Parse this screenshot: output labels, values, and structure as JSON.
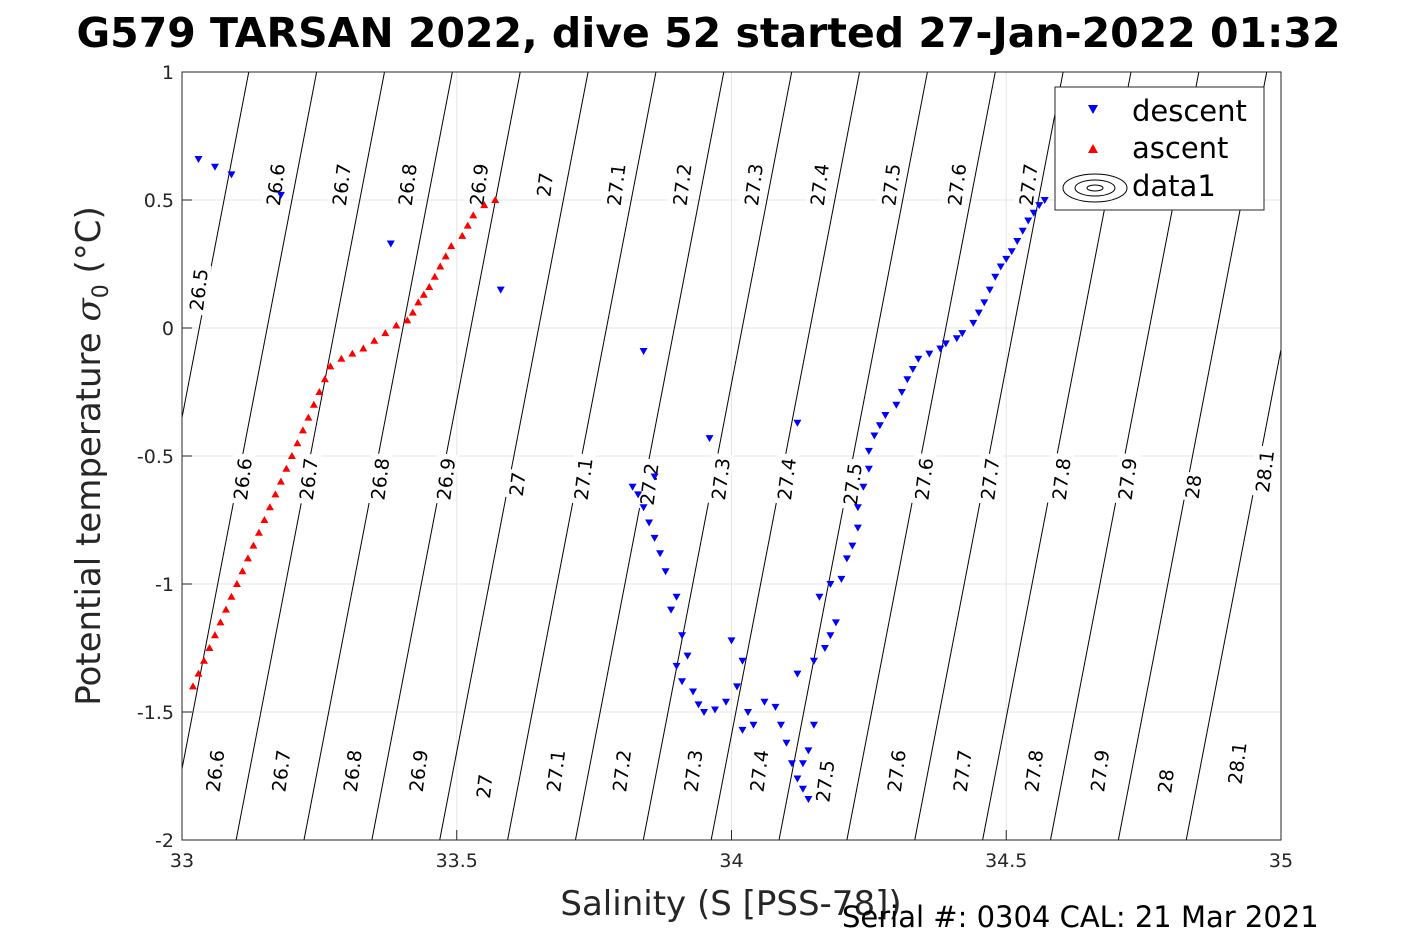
{
  "title": "G579 TARSAN 2022, dive 52 started 27-Jan-2022 01:32",
  "footer": "Serial #: 0304  CAL: 21 Mar 2021",
  "colors": {
    "descent": "#0000ff",
    "ascent": "#ff0000",
    "grid": "#e6e6e6",
    "contour": "#000000"
  },
  "chart_data": {
    "type": "scatter",
    "xlabel": "Salinity (S [PSS-78])",
    "ylabel": "Potential temperature σ₀ (°C)",
    "xlim": [
      33,
      35
    ],
    "ylim": [
      -2,
      1
    ],
    "xticks": [
      "33",
      "33.5",
      "34",
      "34.5",
      "35"
    ],
    "yticks": [
      "-2",
      "-1.5",
      "-1",
      "-0.5",
      "0",
      "0.5",
      "1"
    ],
    "grid": true,
    "legend_position": "top-right",
    "legend": [
      "descent",
      "ascent",
      "data1"
    ],
    "contours": {
      "levels": [
        "26.5",
        "26.6",
        "26.7",
        "26.8",
        "26.9",
        "27",
        "27.1",
        "27.2",
        "27.3",
        "27.4",
        "27.5",
        "27.6",
        "27.7",
        "27.8",
        "27.9",
        "28",
        "28.1"
      ],
      "top_labels": [
        [
          "26.5",
          33.03,
          0.15
        ],
        [
          "26.6",
          33.17,
          0.56
        ],
        [
          "26.7",
          33.29,
          0.56
        ],
        [
          "26.8",
          33.41,
          0.56
        ],
        [
          "26.9",
          33.54,
          0.56
        ],
        [
          "27",
          33.66,
          0.56
        ],
        [
          "27.1",
          33.79,
          0.56
        ],
        [
          "27.2",
          33.91,
          0.56
        ],
        [
          "27.3",
          34.04,
          0.56
        ],
        [
          "27.4",
          34.16,
          0.56
        ],
        [
          "27.5",
          34.29,
          0.56
        ],
        [
          "27.6",
          34.41,
          0.56
        ],
        [
          "27.7",
          34.54,
          0.56
        ]
      ],
      "middle_labels": [
        [
          "26.6",
          33.11,
          -0.59
        ],
        [
          "26.7",
          33.23,
          -0.59
        ],
        [
          "26.8",
          33.36,
          -0.59
        ],
        [
          "26.9",
          33.48,
          -0.59
        ],
        [
          "27",
          33.61,
          -0.61
        ],
        [
          "27.1",
          33.73,
          -0.59
        ],
        [
          "27.2",
          33.85,
          -0.61
        ],
        [
          "27.3",
          33.98,
          -0.59
        ],
        [
          "27.4",
          34.1,
          -0.59
        ],
        [
          "27.5",
          34.22,
          -0.61
        ],
        [
          "27.6",
          34.35,
          -0.59
        ],
        [
          "27.7",
          34.47,
          -0.59
        ],
        [
          "27.8",
          34.6,
          -0.59
        ],
        [
          "27.9",
          34.72,
          -0.59
        ],
        [
          "28",
          34.84,
          -0.62
        ],
        [
          "28.1",
          34.97,
          -0.56
        ]
      ],
      "bottom_labels": [
        [
          "26.6",
          33.06,
          -1.73
        ],
        [
          "26.7",
          33.18,
          -1.73
        ],
        [
          "26.8",
          33.31,
          -1.73
        ],
        [
          "26.9",
          33.43,
          -1.73
        ],
        [
          "27",
          33.55,
          -1.79
        ],
        [
          "27.1",
          33.68,
          -1.73
        ],
        [
          "27.2",
          33.8,
          -1.73
        ],
        [
          "27.3",
          33.93,
          -1.73
        ],
        [
          "27.4",
          34.05,
          -1.73
        ],
        [
          "27.5",
          34.17,
          -1.77
        ],
        [
          "27.6",
          34.3,
          -1.73
        ],
        [
          "27.7",
          34.42,
          -1.73
        ],
        [
          "27.8",
          34.55,
          -1.73
        ],
        [
          "27.9",
          34.67,
          -1.73
        ],
        [
          "28",
          34.79,
          -1.77
        ],
        [
          "28.1",
          34.92,
          -1.7
        ]
      ]
    },
    "series": [
      {
        "name": "descent",
        "marker": "triangle-down",
        "points": [
          [
            33.03,
            0.66
          ],
          [
            33.06,
            0.63
          ],
          [
            33.09,
            0.6
          ],
          [
            33.18,
            0.52
          ],
          [
            33.38,
            0.33
          ],
          [
            33.58,
            0.15
          ],
          [
            33.84,
            -0.09
          ],
          [
            33.96,
            -0.43
          ],
          [
            34.12,
            -0.37
          ],
          [
            33.86,
            -0.58
          ],
          [
            33.82,
            -0.62
          ],
          [
            33.83,
            -0.65
          ],
          [
            33.84,
            -0.7
          ],
          [
            33.85,
            -0.76
          ],
          [
            33.86,
            -0.82
          ],
          [
            33.87,
            -0.88
          ],
          [
            33.88,
            -0.95
          ],
          [
            33.9,
            -1.05
          ],
          [
            33.89,
            -1.1
          ],
          [
            33.91,
            -1.2
          ],
          [
            33.92,
            -1.28
          ],
          [
            33.9,
            -1.32
          ],
          [
            33.91,
            -1.38
          ],
          [
            33.93,
            -1.42
          ],
          [
            33.94,
            -1.47
          ],
          [
            33.95,
            -1.5
          ],
          [
            33.97,
            -1.49
          ],
          [
            33.99,
            -1.46
          ],
          [
            34.0,
            -1.22
          ],
          [
            34.02,
            -1.3
          ],
          [
            34.01,
            -1.4
          ],
          [
            34.03,
            -1.5
          ],
          [
            34.04,
            -1.55
          ],
          [
            34.02,
            -1.57
          ],
          [
            34.06,
            -1.46
          ],
          [
            34.08,
            -1.48
          ],
          [
            34.09,
            -1.55
          ],
          [
            34.1,
            -1.62
          ],
          [
            34.11,
            -1.7
          ],
          [
            34.12,
            -1.76
          ],
          [
            34.13,
            -1.8
          ],
          [
            34.14,
            -1.84
          ],
          [
            34.13,
            -1.7
          ],
          [
            34.14,
            -1.65
          ],
          [
            34.15,
            -1.55
          ],
          [
            34.12,
            -1.35
          ],
          [
            34.15,
            -1.3
          ],
          [
            34.17,
            -1.25
          ],
          [
            34.18,
            -1.2
          ],
          [
            34.19,
            -1.15
          ],
          [
            34.16,
            -1.05
          ],
          [
            34.18,
            -1.0
          ],
          [
            34.2,
            -0.98
          ],
          [
            34.21,
            -0.9
          ],
          [
            34.22,
            -0.85
          ],
          [
            34.23,
            -0.78
          ],
          [
            34.23,
            -0.7
          ],
          [
            34.24,
            -0.62
          ],
          [
            34.25,
            -0.55
          ],
          [
            34.25,
            -0.48
          ],
          [
            34.26,
            -0.42
          ],
          [
            34.27,
            -0.38
          ],
          [
            34.28,
            -0.34
          ],
          [
            34.3,
            -0.3
          ],
          [
            34.31,
            -0.25
          ],
          [
            34.32,
            -0.2
          ],
          [
            34.33,
            -0.16
          ],
          [
            34.34,
            -0.12
          ],
          [
            34.36,
            -0.1
          ],
          [
            34.38,
            -0.08
          ],
          [
            34.39,
            -0.06
          ],
          [
            34.41,
            -0.04
          ],
          [
            34.42,
            -0.02
          ],
          [
            34.44,
            0.02
          ],
          [
            34.45,
            0.06
          ],
          [
            34.46,
            0.1
          ],
          [
            34.47,
            0.15
          ],
          [
            34.48,
            0.2
          ],
          [
            34.49,
            0.24
          ],
          [
            34.5,
            0.27
          ],
          [
            34.51,
            0.3
          ],
          [
            34.52,
            0.34
          ],
          [
            34.53,
            0.38
          ],
          [
            34.54,
            0.42
          ],
          [
            34.55,
            0.45
          ],
          [
            34.56,
            0.48
          ],
          [
            34.57,
            0.5
          ]
        ]
      },
      {
        "name": "ascent",
        "marker": "triangle-up",
        "points": [
          [
            33.57,
            0.5
          ],
          [
            33.55,
            0.48
          ],
          [
            33.53,
            0.44
          ],
          [
            33.52,
            0.4
          ],
          [
            33.51,
            0.36
          ],
          [
            33.49,
            0.32
          ],
          [
            33.48,
            0.28
          ],
          [
            33.47,
            0.24
          ],
          [
            33.46,
            0.2
          ],
          [
            33.45,
            0.16
          ],
          [
            33.44,
            0.13
          ],
          [
            33.43,
            0.1
          ],
          [
            33.42,
            0.06
          ],
          [
            33.41,
            0.03
          ],
          [
            33.39,
            0.01
          ],
          [
            33.37,
            -0.02
          ],
          [
            33.35,
            -0.05
          ],
          [
            33.33,
            -0.08
          ],
          [
            33.31,
            -0.1
          ],
          [
            33.29,
            -0.12
          ],
          [
            33.27,
            -0.15
          ],
          [
            33.26,
            -0.2
          ],
          [
            33.25,
            -0.25
          ],
          [
            33.24,
            -0.3
          ],
          [
            33.23,
            -0.35
          ],
          [
            33.22,
            -0.4
          ],
          [
            33.21,
            -0.45
          ],
          [
            33.2,
            -0.5
          ],
          [
            33.19,
            -0.55
          ],
          [
            33.18,
            -0.6
          ],
          [
            33.17,
            -0.65
          ],
          [
            33.16,
            -0.7
          ],
          [
            33.15,
            -0.75
          ],
          [
            33.14,
            -0.8
          ],
          [
            33.13,
            -0.85
          ],
          [
            33.12,
            -0.9
          ],
          [
            33.11,
            -0.95
          ],
          [
            33.1,
            -1.0
          ],
          [
            33.09,
            -1.05
          ],
          [
            33.08,
            -1.1
          ],
          [
            33.07,
            -1.15
          ],
          [
            33.06,
            -1.2
          ],
          [
            33.05,
            -1.25
          ],
          [
            33.04,
            -1.3
          ],
          [
            33.03,
            -1.35
          ],
          [
            33.02,
            -1.4
          ]
        ]
      }
    ]
  }
}
